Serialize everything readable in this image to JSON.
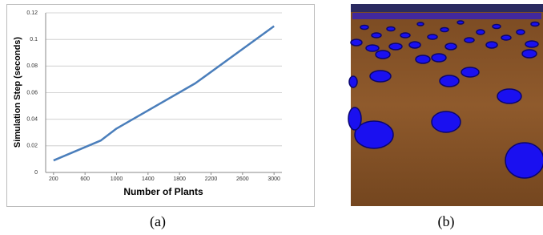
{
  "chart_data": {
    "type": "line",
    "xlabel": "Number of Plants",
    "ylabel": "Simulation Step (seconds)",
    "x": [
      200,
      800,
      1000,
      2000,
      3000
    ],
    "values": [
      0.009,
      0.024,
      0.033,
      0.067,
      0.11
    ],
    "color": "#4a7ebb",
    "xlim": [
      100,
      3100
    ],
    "xticks": [
      200,
      600,
      1000,
      1400,
      1800,
      2200,
      2600,
      3000
    ],
    "ylim": [
      0,
      0.12
    ],
    "yticks": [
      0,
      0.02,
      0.04,
      0.06,
      0.08,
      0.1,
      0.12
    ],
    "grid": true
  },
  "captions": [
    "(a)",
    "(b)"
  ]
}
